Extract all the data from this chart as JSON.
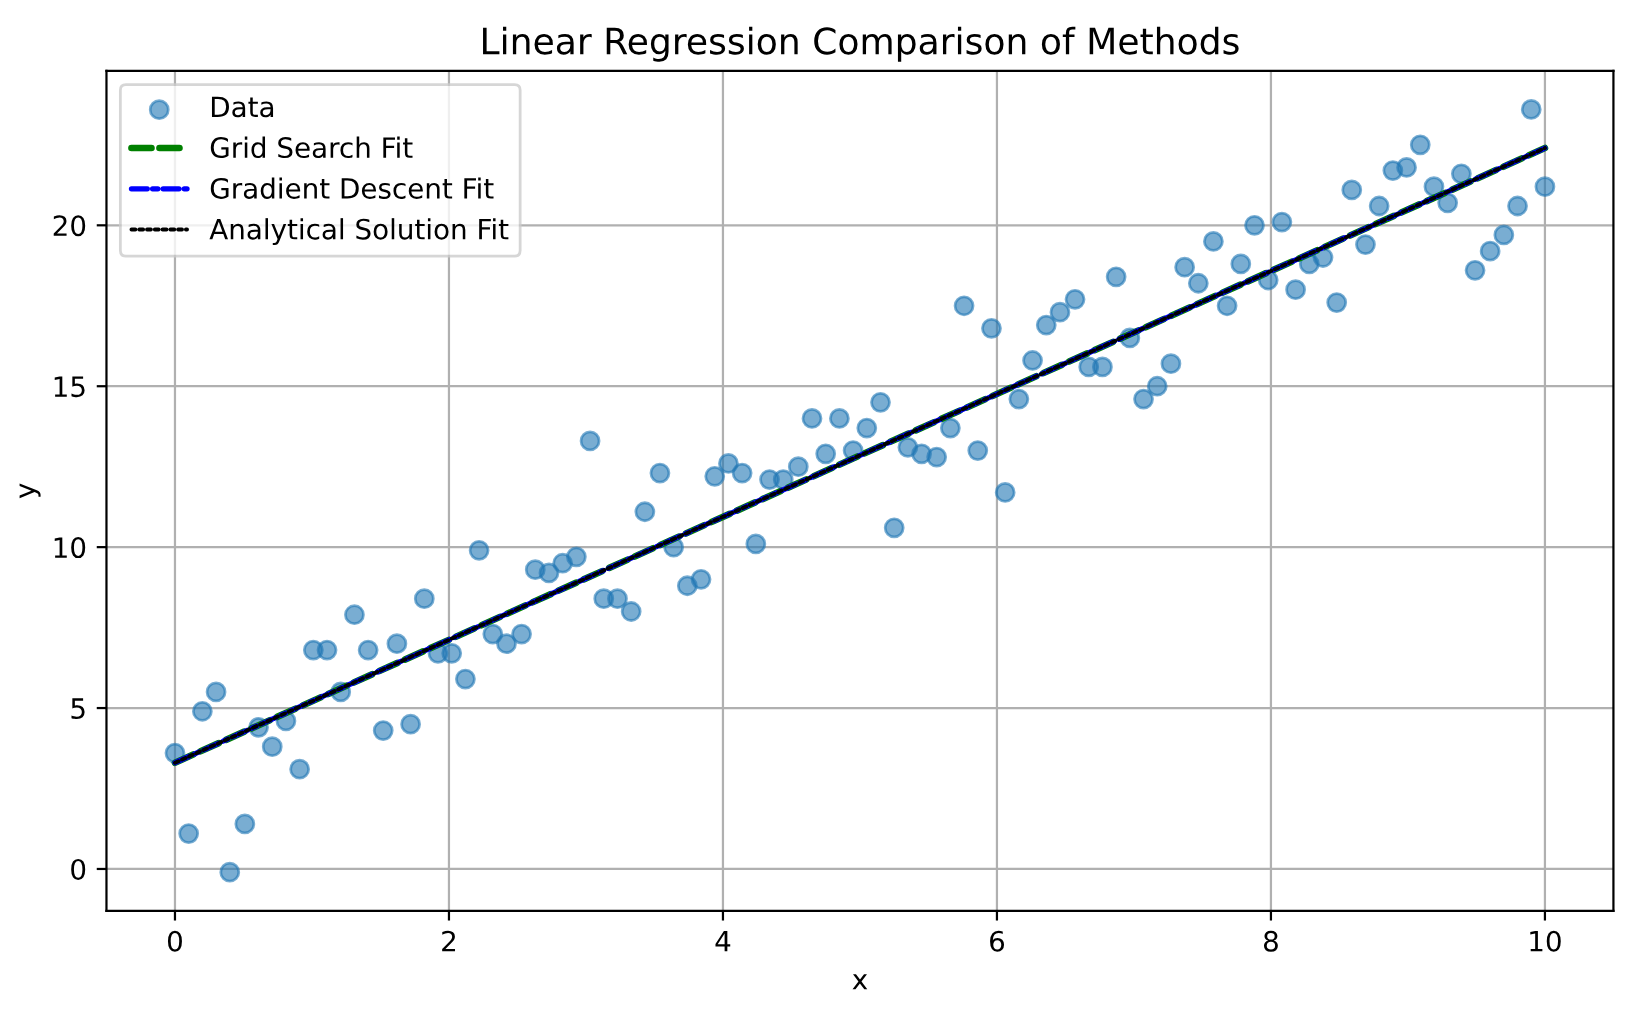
{
  "chart_data": {
    "type": "scatter",
    "title": "Linear Regression Comparison of Methods",
    "xlabel": "x",
    "ylabel": "y",
    "xlim": [
      -0.5,
      10.5
    ],
    "ylim": [
      -1.3,
      24.8
    ],
    "xticks": [
      0,
      2,
      4,
      6,
      8,
      10
    ],
    "yticks": [
      0,
      5,
      10,
      15,
      20
    ],
    "grid": true,
    "legend": "top left",
    "series": [
      {
        "name": "Data",
        "type": "scatter",
        "marker": "circle",
        "color": "#1f77b4",
        "x": [
          0.0,
          0.1,
          0.2,
          0.3,
          0.4,
          0.51,
          0.61,
          0.71,
          0.81,
          0.91,
          1.01,
          1.11,
          1.21,
          1.31,
          1.41,
          1.52,
          1.62,
          1.72,
          1.82,
          1.92,
          2.02,
          2.12,
          2.22,
          2.32,
          2.42,
          2.53,
          2.63,
          2.73,
          2.83,
          2.93,
          3.03,
          3.13,
          3.23,
          3.33,
          3.43,
          3.54,
          3.64,
          3.74,
          3.84,
          3.94,
          4.04,
          4.14,
          4.24,
          4.34,
          4.44,
          4.55,
          4.65,
          4.75,
          4.85,
          4.95,
          5.05,
          5.15,
          5.25,
          5.35,
          5.45,
          5.56,
          5.66,
          5.76,
          5.86,
          5.96,
          6.06,
          6.16,
          6.26,
          6.36,
          6.46,
          6.57,
          6.67,
          6.77,
          6.87,
          6.97,
          7.07,
          7.17,
          7.27,
          7.37,
          7.47,
          7.58,
          7.68,
          7.78,
          7.88,
          7.98,
          8.08,
          8.18,
          8.28,
          8.38,
          8.48,
          8.59,
          8.69,
          8.79,
          8.89,
          8.99,
          9.09,
          9.19,
          9.29,
          9.39,
          9.49,
          9.6,
          9.7,
          9.8,
          9.9,
          10.0
        ],
        "values": [
          3.6,
          1.1,
          4.9,
          5.5,
          -0.1,
          1.4,
          4.4,
          3.8,
          4.6,
          3.1,
          6.8,
          6.8,
          5.5,
          7.9,
          6.8,
          4.3,
          7.0,
          4.5,
          8.4,
          6.7,
          6.7,
          5.9,
          9.9,
          7.3,
          7.0,
          7.3,
          9.3,
          9.2,
          9.5,
          9.7,
          13.3,
          8.4,
          8.4,
          8.0,
          11.1,
          12.3,
          10.0,
          8.8,
          9.0,
          12.2,
          12.6,
          12.3,
          10.1,
          12.1,
          12.1,
          12.5,
          14.0,
          12.9,
          14.0,
          13.0,
          13.7,
          14.5,
          10.6,
          13.1,
          12.9,
          12.8,
          13.7,
          17.5,
          13.0,
          16.8,
          11.7,
          14.6,
          15.8,
          16.9,
          17.3,
          17.7,
          15.6,
          15.6,
          18.4,
          16.5,
          14.6,
          15.0,
          15.7,
          18.7,
          18.2,
          19.5,
          17.5,
          18.8,
          20.0,
          18.3,
          20.1,
          18.0,
          18.8,
          19.0,
          17.6,
          21.1,
          19.4,
          20.6,
          21.7,
          21.8,
          22.5,
          21.2,
          20.7,
          21.6,
          18.6,
          19.2,
          19.7,
          20.6,
          23.6,
          21.2
        ]
      },
      {
        "name": "Grid Search Fit",
        "type": "line",
        "color": "#008000",
        "line_style": "dashed",
        "marker": "none",
        "x": [
          0,
          10
        ],
        "values": [
          3.3,
          22.4
        ]
      },
      {
        "name": "Gradient Descent Fit",
        "type": "line",
        "color": "#0000ff",
        "line_style": "dashdot",
        "marker": "none",
        "x": [
          0,
          10
        ],
        "values": [
          3.3,
          22.4
        ]
      },
      {
        "name": "Analytical Solution Fit",
        "type": "line",
        "color": "#000000",
        "line_style": "dotted",
        "marker": "none",
        "x": [
          0,
          10
        ],
        "values": [
          3.3,
          22.4
        ]
      }
    ]
  }
}
